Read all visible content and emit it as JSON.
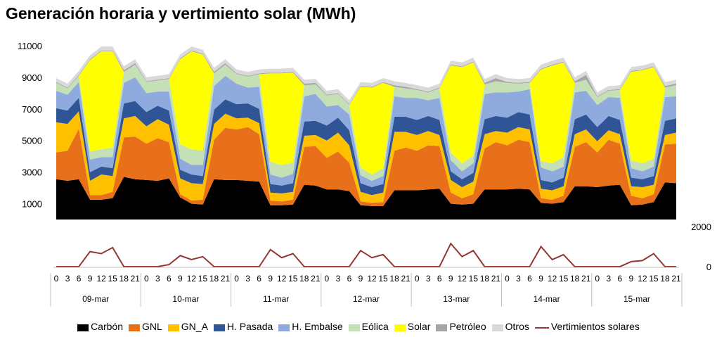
{
  "chart_data": [
    {
      "type": "area",
      "stacked": true,
      "title": "Generación horaria y vertimiento solar (MWh)",
      "ylim": [
        0,
        11000
      ],
      "yticks": [
        1000,
        3000,
        5000,
        7000,
        9000,
        11000
      ],
      "grid": false,
      "x": {
        "hour_tick_labels": [
          "0",
          "3",
          "6",
          "9",
          "12",
          "15",
          "18",
          "21"
        ],
        "days": [
          "09-mar",
          "10-mar",
          "11-mar",
          "12-mar",
          "13-mar",
          "14-mar",
          "15-mar"
        ],
        "hourly_points": [
          0,
          3,
          6,
          9,
          12,
          15,
          18,
          21
        ],
        "points_per_day": 8
      },
      "series": [
        {
          "name": "Carbón",
          "color": "#000000",
          "values": [
            [
              2550,
              2450,
              2550,
              1250,
              1250,
              1350,
              2700,
              2550
            ],
            [
              2500,
              2450,
              2600,
              1400,
              1000,
              950,
              2550,
              2500
            ],
            [
              2500,
              2450,
              2400,
              900,
              900,
              950,
              2200,
              2150
            ],
            [
              1900,
              1900,
              1800,
              900,
              850,
              850,
              1850,
              1850
            ],
            [
              1850,
              1900,
              1950,
              1000,
              950,
              1000,
              1900,
              1900
            ],
            [
              1900,
              1950,
              1900,
              1050,
              1000,
              1100,
              2100,
              2100
            ],
            [
              2050,
              2150,
              2200,
              900,
              950,
              1100,
              2350,
              2300
            ]
          ]
        },
        {
          "name": "GNL",
          "color": "#E8701A",
          "values": [
            [
              1700,
              1900,
              3200,
              300,
              300,
              400,
              2500,
              2700
            ],
            [
              2300,
              2700,
              2300,
              200,
              200,
              300,
              2500,
              3300
            ],
            [
              3200,
              3400,
              3000,
              300,
              250,
              300,
              2400,
              2500
            ],
            [
              2000,
              2400,
              1800,
              250,
              200,
              250,
              2500,
              2700
            ],
            [
              2500,
              2800,
              2700,
              700,
              400,
              600,
              2600,
              3000
            ],
            [
              2800,
              3100,
              3000,
              300,
              250,
              400,
              2500,
              2800
            ],
            [
              2200,
              2900,
              2600,
              600,
              400,
              500,
              2400,
              2500
            ]
          ]
        },
        {
          "name": "GN_A",
          "color": "#FFC000",
          "values": [
            [
              1900,
              1700,
              1100,
              900,
              1300,
              1000,
              1200,
              1300
            ],
            [
              1100,
              1200,
              1100,
              1000,
              1100,
              1000,
              1000,
              900
            ],
            [
              700,
              600,
              700,
              500,
              500,
              500,
              700,
              700
            ],
            [
              1100,
              1200,
              1100,
              600,
              500,
              600,
              1200,
              1000
            ],
            [
              1000,
              900,
              700,
              800,
              700,
              800,
              900,
              700
            ],
            [
              800,
              800,
              800,
              600,
              600,
              600,
              800,
              800
            ],
            [
              700,
              600,
              600,
              600,
              700,
              600,
              600,
              700
            ]
          ]
        },
        {
          "name": "H. Pasada",
          "color": "#2F5597",
          "values": [
            [
              900,
              850,
              850,
              550,
              500,
              500,
              950,
              950
            ],
            [
              900,
              850,
              900,
              550,
              550,
              500,
              900,
              900
            ],
            [
              900,
              900,
              900,
              550,
              500,
              550,
              900,
              900
            ],
            [
              950,
              950,
              950,
              550,
              500,
              550,
              950,
              950
            ],
            [
              950,
              950,
              950,
              550,
              500,
              550,
              950,
              950
            ],
            [
              950,
              950,
              950,
              550,
              500,
              550,
              950,
              950
            ],
            [
              900,
              900,
              900,
              550,
              500,
              550,
              900,
              900
            ]
          ]
        },
        {
          "name": "H. Embalse",
          "color": "#8FAADC",
          "values": [
            [
              1100,
              1000,
              1000,
              800,
              600,
              700,
              1300,
              1500
            ],
            [
              1200,
              900,
              1200,
              700,
              600,
              700,
              1500,
              1500
            ],
            [
              1300,
              1000,
              1400,
              600,
              500,
              600,
              1600,
              1700
            ],
            [
              1200,
              800,
              1000,
              500,
              400,
              500,
              1300,
              1200
            ],
            [
              1400,
              1000,
              1400,
              700,
              500,
              600,
              1600,
              1500
            ],
            [
              1600,
              1300,
              1600,
              800,
              700,
              700,
              1700,
              1500
            ],
            [
              1400,
              1200,
              1400,
              600,
              500,
              600,
              1500,
              1400
            ]
          ]
        },
        {
          "name": "Eólica",
          "color": "#C5E0B4",
          "values": [
            [
              500,
              400,
              400,
              500,
              500,
              600,
              700,
              800
            ],
            [
              700,
              700,
              800,
              900,
              1000,
              900,
              800,
              700
            ],
            [
              600,
              700,
              800,
              800,
              800,
              700,
              700,
              600
            ],
            [
              700,
              700,
              600,
              500,
              400,
              500,
              600,
              600
            ],
            [
              500,
              500,
              600,
              500,
              500,
              500,
              600,
              700
            ],
            [
              600,
              500,
              400,
              400,
              500,
              600,
              600,
              700
            ],
            [
              500,
              400,
              500,
              500,
              500,
              500,
              600,
              700
            ]
          ]
        },
        {
          "name": "Solar",
          "color": "#FFFF00",
          "values": [
            [
              0,
              0,
              0,
              5800,
              6200,
              6100,
              0,
              0
            ],
            [
              0,
              0,
              0,
              5400,
              6200,
              6100,
              0,
              0
            ],
            [
              0,
              0,
              0,
              5600,
              5800,
              5700,
              0,
              0
            ],
            [
              0,
              0,
              0,
              5100,
              5500,
              5400,
              0,
              0
            ],
            [
              0,
              0,
              0,
              5500,
              6100,
              5900,
              0,
              0
            ],
            [
              0,
              0,
              0,
              5800,
              6200,
              6000,
              0,
              0
            ],
            [
              0,
              0,
              0,
              5600,
              5900,
              5800,
              0,
              0
            ]
          ]
        },
        {
          "name": "Petróleo",
          "color": "#A5A5A5",
          "values": [
            [
              50,
              50,
              50,
              50,
              50,
              50,
              100,
              100
            ],
            [
              50,
              50,
              50,
              50,
              50,
              50,
              100,
              100
            ],
            [
              50,
              50,
              50,
              50,
              50,
              50,
              100,
              100
            ],
            [
              50,
              50,
              50,
              50,
              50,
              50,
              100,
              100
            ],
            [
              50,
              50,
              50,
              50,
              50,
              50,
              100,
              200
            ],
            [
              50,
              50,
              50,
              50,
              50,
              50,
              100,
              300
            ],
            [
              50,
              50,
              50,
              50,
              50,
              50,
              100,
              100
            ]
          ]
        },
        {
          "name": "Otros",
          "color": "#D9D9D9",
          "values": [
            [
              250,
              250,
              250,
              250,
              250,
              250,
              250,
              250
            ],
            [
              250,
              250,
              250,
              250,
              250,
              250,
              250,
              250
            ],
            [
              250,
              250,
              250,
              250,
              250,
              250,
              250,
              250
            ],
            [
              250,
              250,
              250,
              250,
              250,
              250,
              250,
              250
            ],
            [
              250,
              250,
              250,
              250,
              250,
              250,
              250,
              250
            ],
            [
              250,
              250,
              250,
              250,
              250,
              250,
              250,
              250
            ],
            [
              250,
              250,
              250,
              250,
              250,
              250,
              250,
              250
            ]
          ]
        }
      ]
    },
    {
      "type": "line",
      "ylim": [
        0,
        2000
      ],
      "yticks": [
        0,
        2000
      ],
      "series": [
        {
          "name": "Vertimientos solares",
          "color": "#943634",
          "values": [
            [
              0,
              0,
              0,
              750,
              650,
              950,
              0,
              0
            ],
            [
              0,
              0,
              100,
              550,
              350,
              500,
              0,
              0
            ],
            [
              0,
              0,
              0,
              850,
              450,
              650,
              0,
              0
            ],
            [
              0,
              0,
              0,
              800,
              450,
              600,
              0,
              0
            ],
            [
              0,
              0,
              0,
              1150,
              500,
              800,
              0,
              0
            ],
            [
              0,
              0,
              0,
              1000,
              350,
              600,
              0,
              0
            ],
            [
              0,
              0,
              0,
              250,
              300,
              650,
              0,
              0
            ]
          ]
        }
      ]
    }
  ]
}
